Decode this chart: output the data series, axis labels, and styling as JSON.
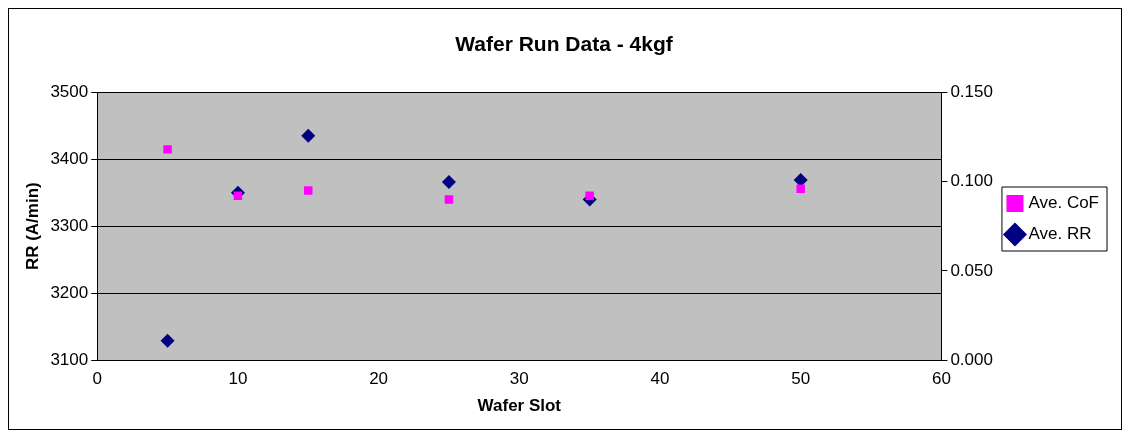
{
  "chart_data": {
    "type": "scatter",
    "title": "Wafer Run Data - 4kgf",
    "xlabel": "Wafer Slot",
    "ylabel": "RR (A/min)",
    "x": [
      5,
      10,
      15,
      25,
      35,
      50
    ],
    "series": [
      {
        "name": "Ave. RR",
        "color": "#000080",
        "marker": "diamond",
        "values": [
          3129,
          3350,
          3435,
          3366,
          3340,
          3369
        ]
      },
      {
        "name": "Ave. CoF",
        "color": "#ff00ff",
        "marker": "square",
        "axis": "y2",
        "values": [
          0.118,
          0.092,
          0.095,
          0.09,
          0.092,
          0.096
        ]
      }
    ],
    "xlim": [
      0,
      60
    ],
    "xticks": [
      0,
      10,
      20,
      30,
      40,
      50,
      60
    ],
    "ylim": [
      3100,
      3500
    ],
    "yticks": [
      3100,
      3200,
      3300,
      3400,
      3500
    ],
    "y2lim": [
      0,
      0.15
    ],
    "y2ticks": [
      {
        "value": 0,
        "label": "0.000"
      },
      {
        "value": 0.05,
        "label": "0.050"
      },
      {
        "value": 0.1,
        "label": "0.100"
      },
      {
        "value": 0.15,
        "label": "0.150"
      }
    ],
    "grid": "y",
    "legend": "right"
  }
}
